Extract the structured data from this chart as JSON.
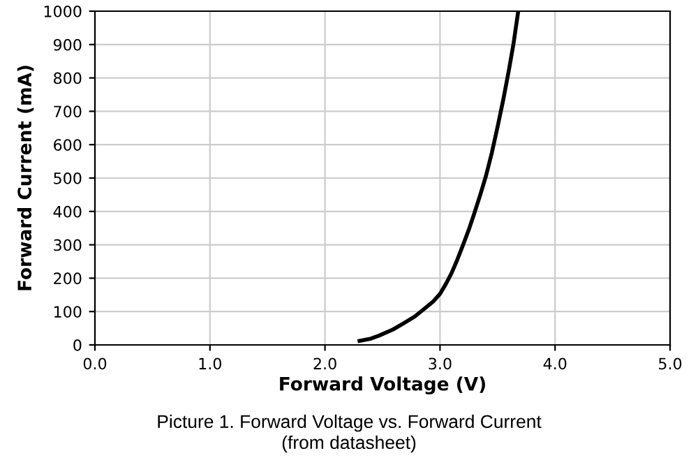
{
  "chart_data": {
    "type": "line",
    "xlabel": "Forward Voltage (V)",
    "ylabel": "Forward Current (mA)",
    "series": [
      {
        "color": "#000000",
        "x": [
          2.3,
          2.4,
          2.47,
          2.59,
          2.67,
          2.78,
          2.87,
          2.94,
          3.0,
          3.05,
          3.1,
          3.15,
          3.2,
          3.25,
          3.3,
          3.35,
          3.4,
          3.45,
          3.5,
          3.55,
          3.6,
          3.64,
          3.68
        ],
        "values": [
          12,
          19,
          28,
          46,
          62,
          85,
          110,
          130,
          153,
          182,
          215,
          255,
          299,
          345,
          396,
          450,
          507,
          575,
          653,
          735,
          826,
          905,
          1000
        ]
      }
    ],
    "xlim": [
      0,
      5
    ],
    "ylim": [
      0,
      1000
    ],
    "xticks": [
      {
        "value": 0,
        "label": "0.0"
      },
      {
        "value": 1,
        "label": "1.0"
      },
      {
        "value": 2,
        "label": "2.0"
      },
      {
        "value": 3,
        "label": "3.0"
      },
      {
        "value": 4,
        "label": "4.0"
      },
      {
        "value": 5,
        "label": "5.0"
      }
    ],
    "yticks": [
      0,
      100,
      200,
      300,
      400,
      500,
      600,
      700,
      800,
      900,
      1000
    ],
    "grid": true,
    "marker": "none",
    "line_style": "solid",
    "annotations": [
      "Picture 1. Forward Voltage vs. Forward Current",
      "(from datasheet)"
    ]
  }
}
